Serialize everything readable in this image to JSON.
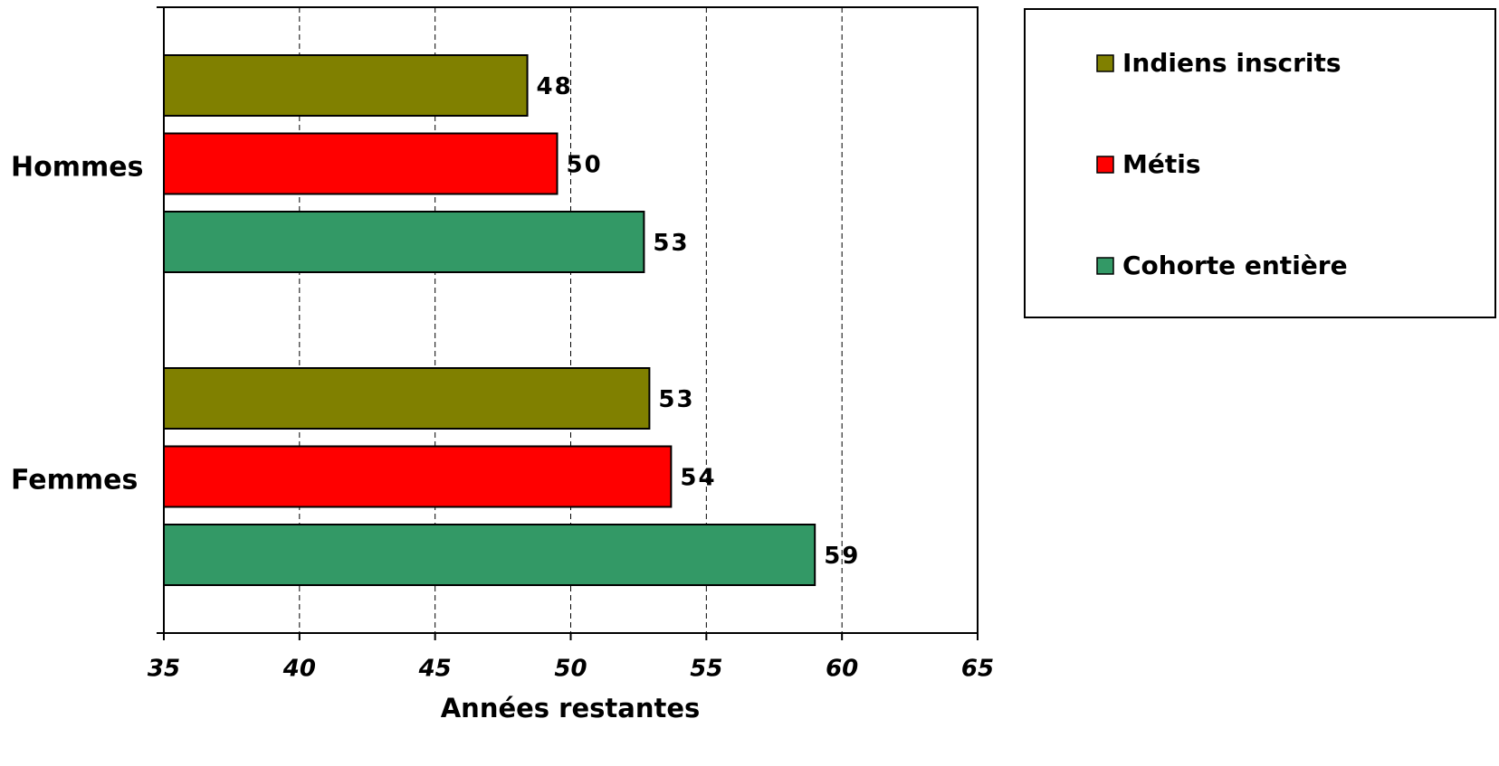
{
  "chart_data": {
    "type": "bar",
    "x_label": "Années restantes",
    "categories": [
      "Hommes",
      "Femmes"
    ],
    "series": [
      {
        "name": "Indiens inscrits",
        "color": "#808000",
        "values": [
          48.4,
          52.9
        ],
        "value_labels": [
          "48",
          "53"
        ]
      },
      {
        "name": "Métis",
        "color": "#ff0000",
        "values": [
          49.5,
          53.7
        ],
        "value_labels": [
          "50",
          "54"
        ]
      },
      {
        "name": "Cohorte entière",
        "color": "#339966",
        "values": [
          52.7,
          59.0
        ],
        "value_labels": [
          "53",
          "59"
        ]
      }
    ],
    "xlim": [
      35,
      65
    ],
    "xticks": [
      35,
      40,
      45,
      50,
      55,
      60,
      65
    ],
    "grid": true
  }
}
